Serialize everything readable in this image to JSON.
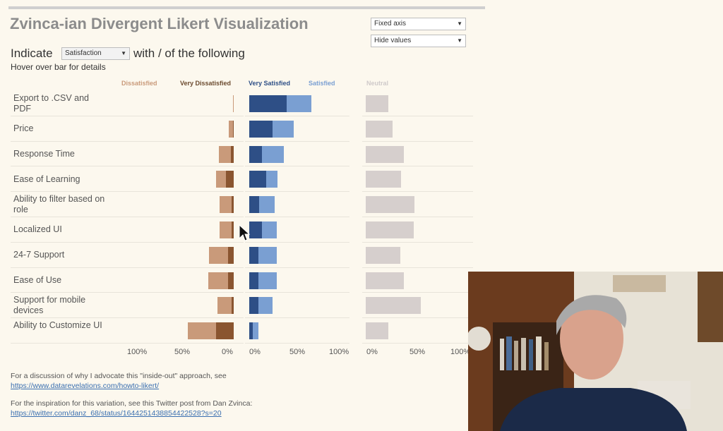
{
  "title": "Zvinca-ian Divergent Likert Visualization",
  "controls": {
    "axis_select": "Fixed axis",
    "values_select": "Hide values",
    "indicate_label": "Indicate",
    "indicate_select": "Satisfaction",
    "with_of_label": "with / of the following",
    "hover_hint": "Hover over bar for details"
  },
  "legend": {
    "dissatisfied": "Dissatisfied",
    "very_dissatisfied": "Very Dissatisfied",
    "very_satisfied": "Very Satisfied",
    "satisfied": "Satisfied",
    "neutral": "Neutral"
  },
  "colors": {
    "dissatisfied": "#c99a7a",
    "very_dissatisfied": "#8a5530",
    "very_satisfied": "#2e4f86",
    "satisfied": "#7a9fd2",
    "neutral": "#d6cfcd"
  },
  "chart_data": {
    "type": "bar",
    "categories": [
      "Export to .CSV and PDF",
      "Price",
      "Response Time",
      "Ease of Learning",
      "Ability to filter based on role",
      "Localized UI",
      "24-7 Support",
      "Ease of Use",
      "Support for mobile devices",
      "Ability to Customize UI"
    ],
    "series": [
      {
        "name": "Very Dissatisfied",
        "values": [
          1,
          1,
          3,
          8,
          2,
          2,
          6,
          6,
          2,
          19
        ]
      },
      {
        "name": "Dissatisfied",
        "values": [
          0,
          4,
          13,
          11,
          13,
          13,
          20,
          21,
          15,
          30
        ]
      },
      {
        "name": "Very Satisfied",
        "values": [
          42,
          26,
          14,
          19,
          11,
          14,
          10,
          10,
          10,
          4
        ]
      },
      {
        "name": "Satisfied",
        "values": [
          28,
          24,
          25,
          13,
          18,
          17,
          21,
          21,
          16,
          6
        ]
      },
      {
        "name": "Neutral",
        "values": [
          22,
          26,
          37,
          34,
          47,
          46,
          33,
          37,
          53,
          22
        ]
      }
    ],
    "negative_axis": {
      "ticks": [
        "100%",
        "50%",
        "0%"
      ]
    },
    "positive_axis": {
      "ticks": [
        "0%",
        "50%",
        "100%"
      ]
    },
    "neutral_axis": {
      "ticks": [
        "0%",
        "50%",
        "100%"
      ]
    }
  },
  "footer": {
    "line1": "For a discussion of why I advocate this \"inside-out\" approach, see",
    "link1": "https://www.datarevelations.com/howto-likert/",
    "line2": "For the inspiration for this variation, see this Twitter post from Dan Zvinca:",
    "link2": "https://twitter.com/danz_68/status/1644251438854422528?s=20"
  }
}
